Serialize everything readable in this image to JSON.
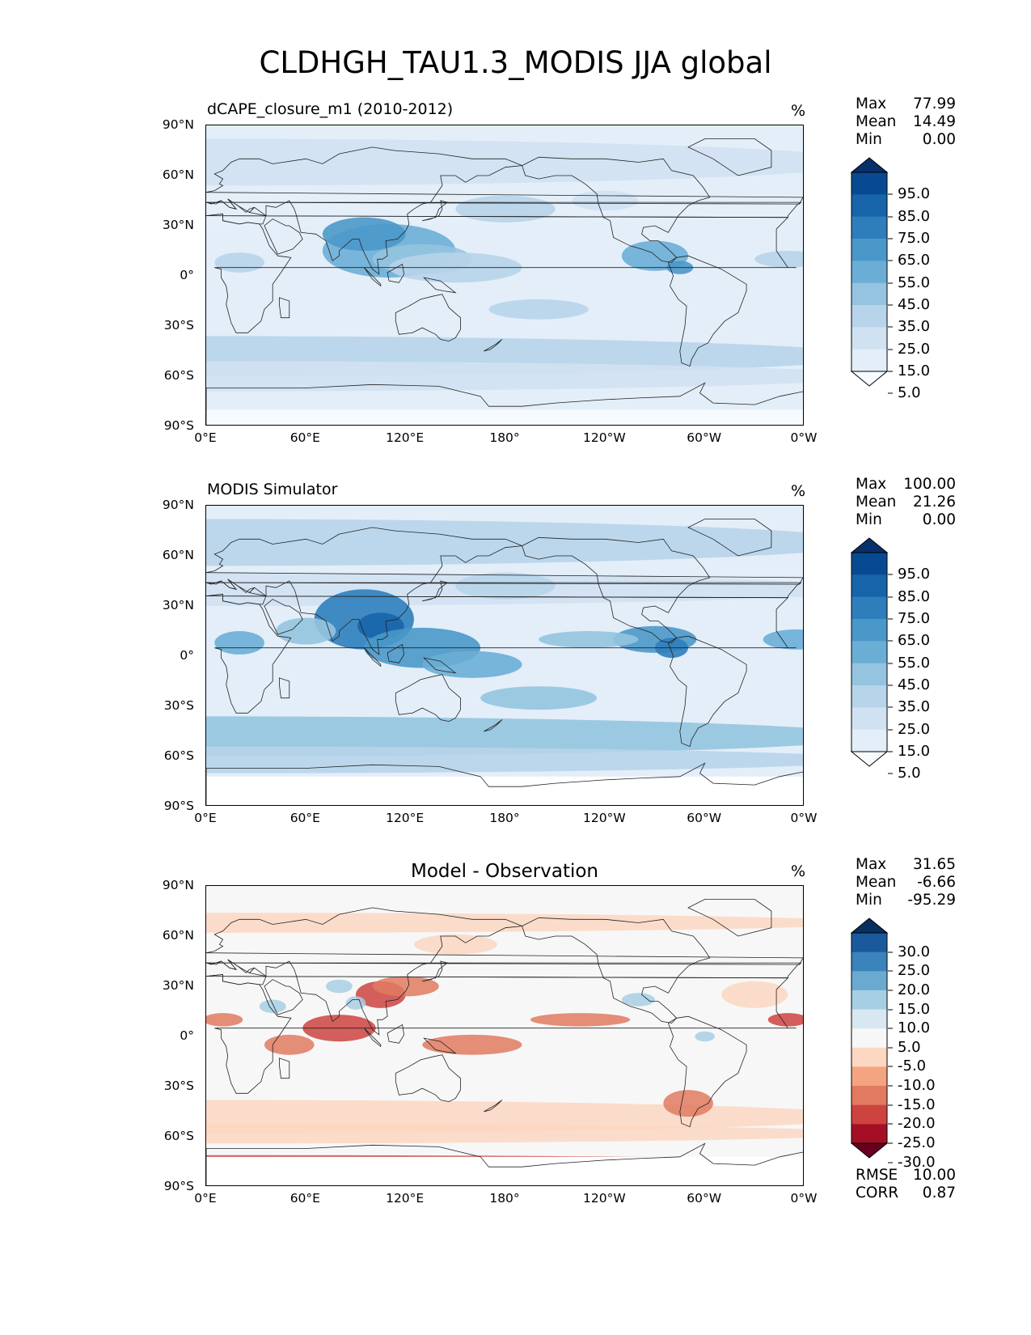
{
  "figure_title": "CLDHGH_TAU1.3_MODIS JJA global",
  "lat_ticks": [
    "90°N",
    "60°N",
    "30°N",
    "0°",
    "30°S",
    "60°S",
    "90°S"
  ],
  "lon_ticks": [
    "0°E",
    "60°E",
    "120°E",
    "180°",
    "120°W",
    "60°W",
    "0°W"
  ],
  "panels": [
    {
      "id": "test",
      "title": "dCAPE_closure_m1 (2010-2012)",
      "title_align": "left",
      "units": "%",
      "stats": [
        {
          "label": "Max",
          "value": "77.99"
        },
        {
          "label": "Mean",
          "value": "14.49"
        },
        {
          "label": "Min",
          "value": "0.00"
        }
      ],
      "colorbar": {
        "colormap": "Blues",
        "colors": [
          "#f7fbff",
          "#e3eef9",
          "#d0e1f2",
          "#b7d4ea",
          "#94c4df",
          "#6aaed6",
          "#4a98c9",
          "#2e7ebc",
          "#1764ab",
          "#084a91",
          "#08306b"
        ],
        "tick_labels": [
          "95.0",
          "85.0",
          "75.0",
          "65.0",
          "55.0",
          "45.0",
          "35.0",
          "25.0",
          "15.0",
          "5.0"
        ]
      }
    },
    {
      "id": "ref",
      "title": "MODIS Simulator",
      "title_align": "left",
      "units": "%",
      "stats": [
        {
          "label": "Max",
          "value": "100.00"
        },
        {
          "label": "Mean",
          "value": "21.26"
        },
        {
          "label": "Min",
          "value": "0.00"
        }
      ],
      "colorbar": {
        "colormap": "Blues",
        "colors": [
          "#f7fbff",
          "#e3eef9",
          "#d0e1f2",
          "#b7d4ea",
          "#94c4df",
          "#6aaed6",
          "#4a98c9",
          "#2e7ebc",
          "#1764ab",
          "#084a91",
          "#08306b"
        ],
        "tick_labels": [
          "95.0",
          "85.0",
          "75.0",
          "65.0",
          "55.0",
          "45.0",
          "35.0",
          "25.0",
          "15.0",
          "5.0"
        ]
      }
    },
    {
      "id": "diff",
      "title": "Model - Observation",
      "title_align": "center",
      "units": "%",
      "stats": [
        {
          "label": "Max",
          "value": "31.65"
        },
        {
          "label": "Mean",
          "value": "-6.66"
        },
        {
          "label": "Min",
          "value": "-95.29"
        }
      ],
      "extra_stats": [
        {
          "label": "RMSE",
          "value": "10.00"
        },
        {
          "label": "CORR",
          "value": "0.87"
        }
      ],
      "colorbar": {
        "colormap": "RdBu",
        "colors": [
          "#67001f",
          "#a50f26",
          "#cc4340",
          "#e17a60",
          "#f3a481",
          "#fcd7c2",
          "#f7f7f7",
          "#d8e8f1",
          "#a7cfe4",
          "#6aaad0",
          "#3a83bb",
          "#1a5a9c",
          "#053061"
        ],
        "tick_labels": [
          "30.0",
          "25.0",
          "20.0",
          "15.0",
          "10.0",
          "5.0",
          "-5.0",
          "-10.0",
          "-15.0",
          "-20.0",
          "-25.0",
          "-30.0"
        ]
      }
    }
  ]
}
